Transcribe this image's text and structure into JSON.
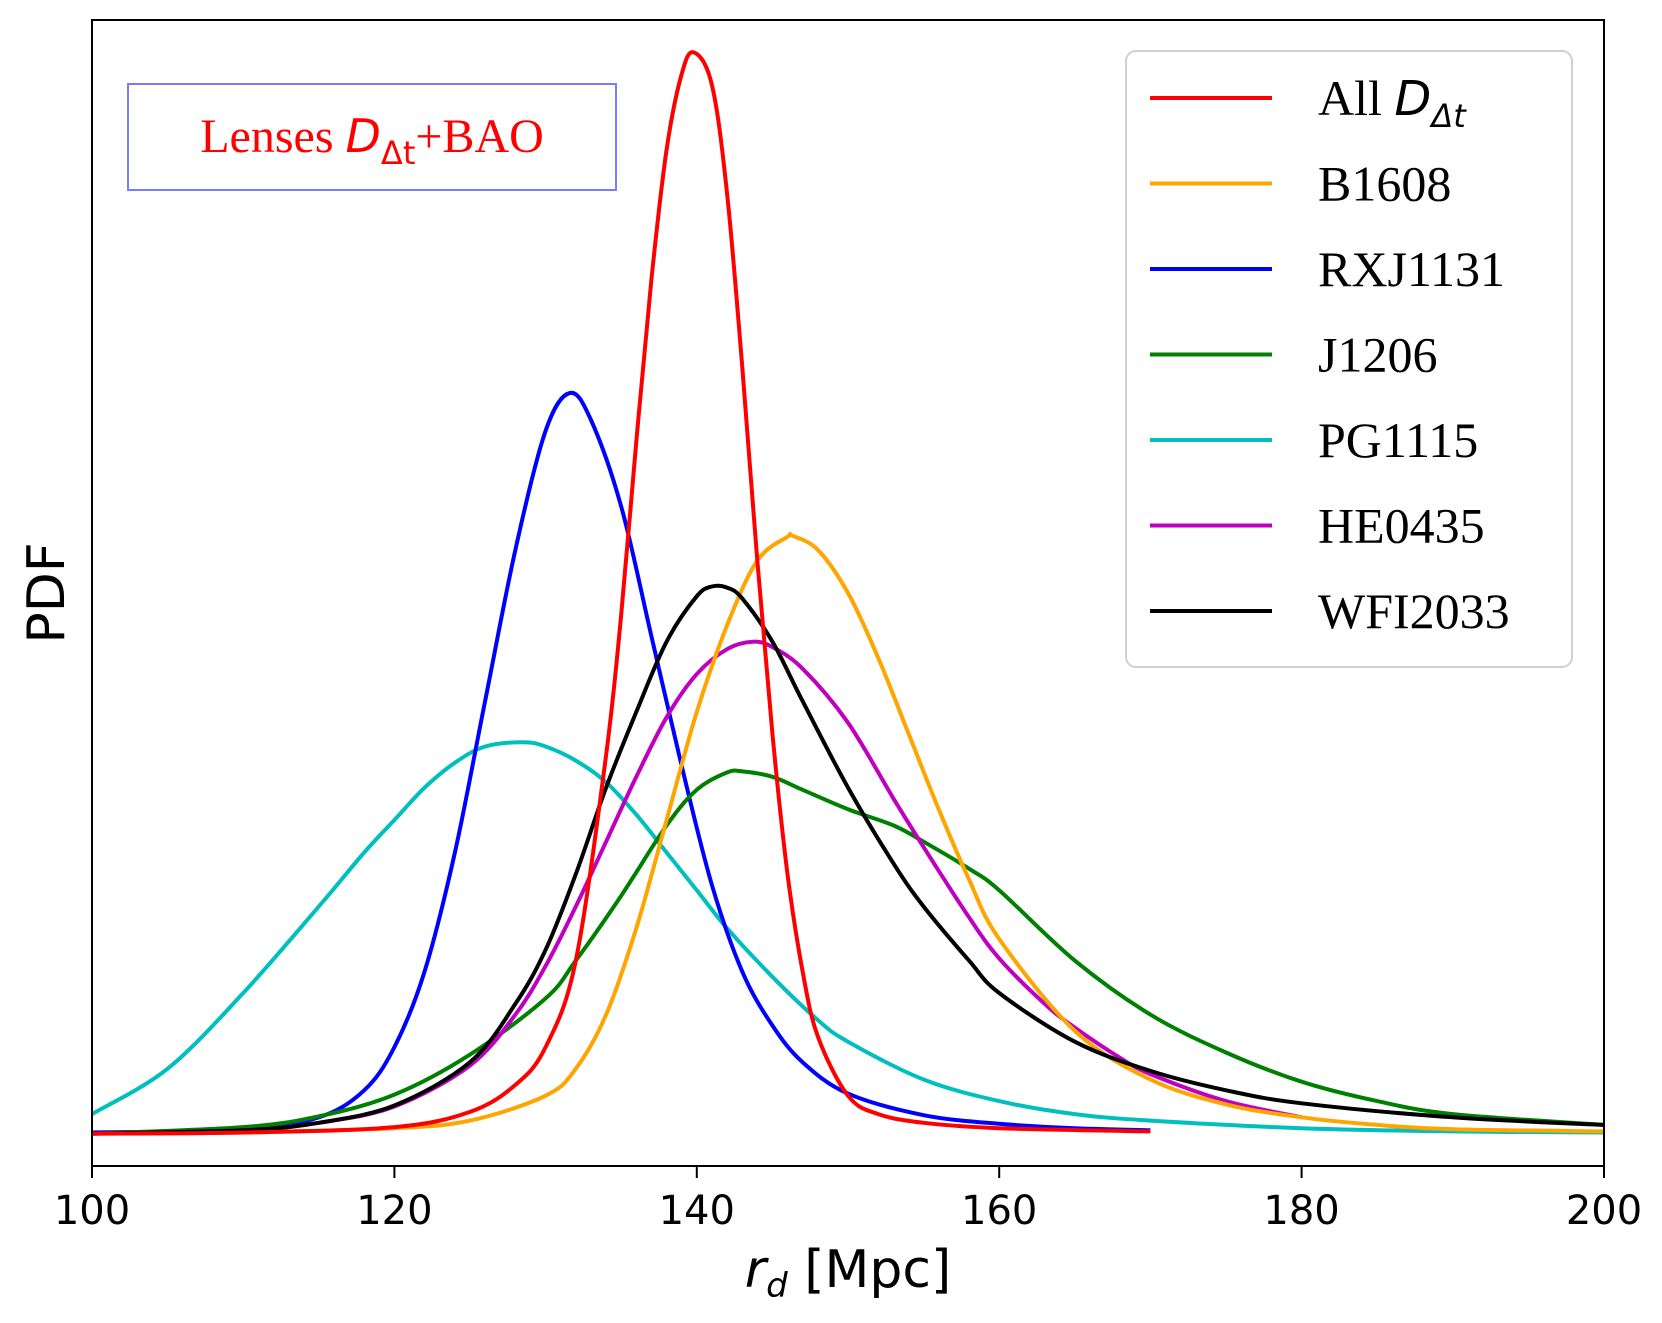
{
  "chart_data": {
    "type": "line",
    "title": "",
    "xlabel": "r_d [Mpc]",
    "xlabel_main": "r",
    "xlabel_sub": "d",
    "xlabel_unit": " [Mpc]",
    "ylabel": "PDF",
    "xlim": [
      100,
      200
    ],
    "ylim": [
      -0.03,
      1.03
    ],
    "xticks": [
      100,
      120,
      140,
      160,
      180,
      200
    ],
    "xtick_labels": [
      "100",
      "120",
      "140",
      "160",
      "180",
      "200"
    ],
    "grid": false,
    "legend_position": "top-right",
    "annotation": {
      "text": "Lenses D_Δt+BAO",
      "prefix": "Lenses ",
      "symbol": "D",
      "subscript": "Δt",
      "suffix": "+BAO",
      "color": "#ff0000",
      "border_color": "#7b7bff",
      "position": "top-left"
    },
    "series": [
      {
        "name": "All D_Δt",
        "label_main": "All ",
        "label_symbol": "D",
        "label_sub": "Δt",
        "color": "#ff0000",
        "x": [
          100,
          110,
          120,
          125,
          128,
          130,
          132,
          134,
          135,
          136,
          137,
          138,
          139,
          139.8,
          141,
          142,
          143,
          144,
          145,
          146,
          147,
          148,
          150,
          152,
          155,
          160,
          170
        ],
        "y": [
          0,
          0.001,
          0.006,
          0.02,
          0.045,
          0.08,
          0.16,
          0.35,
          0.48,
          0.64,
          0.79,
          0.91,
          0.98,
          1.0,
          0.97,
          0.87,
          0.71,
          0.53,
          0.37,
          0.24,
          0.15,
          0.09,
          0.035,
          0.018,
          0.01,
          0.005,
          0.002
        ]
      },
      {
        "name": "B1608",
        "label_main": "B1608",
        "color": "#ffa500",
        "x": [
          100,
          110,
          120,
          125,
          130,
          132,
          134,
          136,
          138,
          140,
          142,
          144,
          146,
          146.3,
          148,
          150,
          152,
          154,
          156,
          158,
          160,
          165,
          170,
          175,
          180,
          185,
          190,
          200
        ],
        "y": [
          0,
          0.001,
          0.005,
          0.012,
          0.035,
          0.06,
          0.11,
          0.19,
          0.29,
          0.39,
          0.47,
          0.53,
          0.552,
          0.553,
          0.54,
          0.5,
          0.44,
          0.37,
          0.3,
          0.235,
          0.18,
          0.095,
          0.05,
          0.027,
          0.015,
          0.008,
          0.004,
          0.002
        ]
      },
      {
        "name": "RXJ1131",
        "label_main": "RXJ1131",
        "color": "#0000ff",
        "x": [
          100,
          110,
          115,
          118,
          120,
          122,
          124,
          126,
          128,
          130,
          131.6,
          133,
          135,
          137,
          139,
          141,
          143,
          145,
          147,
          150,
          155,
          160,
          165,
          170
        ],
        "y": [
          0.001,
          0.004,
          0.015,
          0.04,
          0.08,
          0.15,
          0.26,
          0.4,
          0.54,
          0.65,
          0.685,
          0.66,
          0.58,
          0.46,
          0.34,
          0.23,
          0.15,
          0.1,
          0.066,
          0.037,
          0.017,
          0.009,
          0.005,
          0.003
        ]
      },
      {
        "name": "J1206",
        "label_main": "J1206",
        "color": "#008000",
        "x": [
          100,
          110,
          115,
          120,
          125,
          130,
          132,
          135,
          138,
          140,
          142,
          143,
          145,
          147,
          150,
          153,
          155,
          158,
          160,
          165,
          170,
          175,
          180,
          185,
          190,
          200
        ],
        "y": [
          0,
          0.006,
          0.016,
          0.036,
          0.073,
          0.125,
          0.16,
          0.22,
          0.285,
          0.318,
          0.334,
          0.335,
          0.33,
          0.318,
          0.3,
          0.285,
          0.27,
          0.245,
          0.225,
          0.16,
          0.11,
          0.075,
          0.048,
          0.03,
          0.018,
          0.008
        ]
      },
      {
        "name": "PG1115",
        "label_main": "PG1115",
        "color": "#00bfbf",
        "x": [
          100,
          105,
          110,
          115,
          118,
          120,
          122,
          124,
          126,
          128.5,
          130,
          132,
          134,
          136,
          138,
          140,
          142,
          145,
          148,
          150,
          155,
          160,
          165,
          170,
          180,
          190,
          200
        ],
        "y": [
          0.018,
          0.06,
          0.13,
          0.21,
          0.26,
          0.29,
          0.32,
          0.343,
          0.358,
          0.362,
          0.358,
          0.345,
          0.325,
          0.295,
          0.26,
          0.225,
          0.19,
          0.145,
          0.105,
          0.085,
          0.05,
          0.03,
          0.018,
          0.012,
          0.005,
          0.002,
          0.001
        ]
      },
      {
        "name": "HE0435",
        "label_main": "HE0435",
        "color": "#bf00bf",
        "x": [
          100,
          110,
          115,
          120,
          125,
          128,
          130,
          132,
          134,
          136,
          138,
          140,
          142,
          143.7,
          145,
          147,
          150,
          153,
          155,
          158,
          160,
          163,
          165,
          168,
          170,
          175,
          180
        ],
        "y": [
          0,
          0.003,
          0.01,
          0.025,
          0.063,
          0.11,
          0.155,
          0.21,
          0.27,
          0.33,
          0.385,
          0.425,
          0.448,
          0.455,
          0.45,
          0.43,
          0.38,
          0.31,
          0.265,
          0.2,
          0.162,
          0.12,
          0.098,
          0.07,
          0.055,
          0.03,
          0.015
        ]
      },
      {
        "name": "WFI2033",
        "label_main": "WFI2033",
        "color": "#000000",
        "x": [
          100,
          110,
          115,
          120,
          125,
          128,
          130,
          132,
          134,
          136,
          138,
          140,
          141,
          142,
          143,
          145,
          147,
          150,
          153,
          155,
          158,
          160,
          165,
          170,
          175,
          180,
          190,
          200
        ],
        "y": [
          0,
          0.003,
          0.01,
          0.026,
          0.066,
          0.12,
          0.17,
          0.24,
          0.32,
          0.39,
          0.455,
          0.497,
          0.506,
          0.505,
          0.495,
          0.455,
          0.4,
          0.32,
          0.25,
          0.21,
          0.16,
          0.13,
          0.085,
          0.058,
          0.04,
          0.028,
          0.015,
          0.008
        ]
      }
    ]
  }
}
